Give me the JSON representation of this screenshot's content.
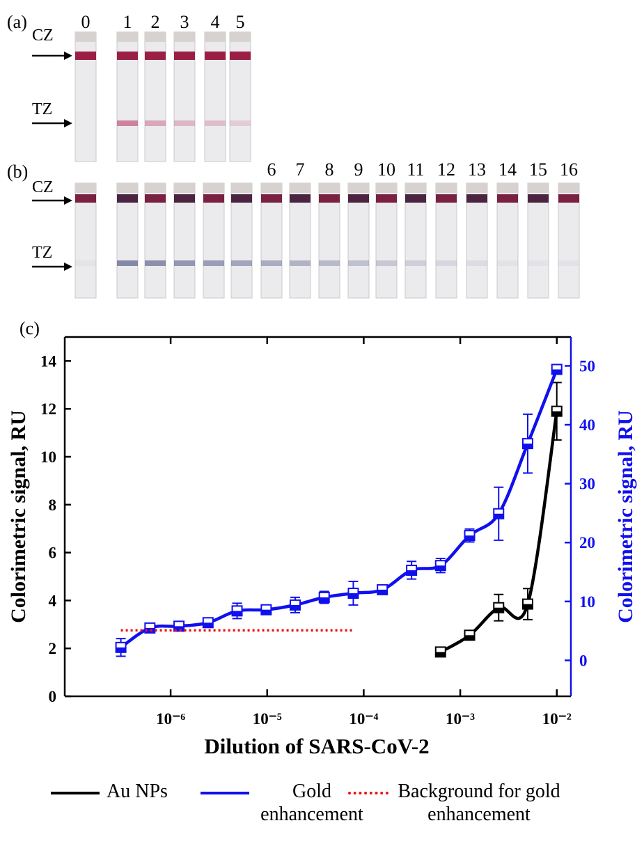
{
  "panel_a": {
    "label": "(a)",
    "lanes": [
      "0",
      "1",
      "2",
      "3",
      "4",
      "5"
    ],
    "cz": "CZ",
    "tz": "TZ"
  },
  "panel_b": {
    "label": "(b)",
    "lanes": [
      "6",
      "7",
      "8",
      "9",
      "10",
      "11",
      "12",
      "13",
      "14",
      "15",
      "16"
    ],
    "cz": "CZ",
    "tz": "TZ"
  },
  "panel_c": {
    "label": "(c)"
  },
  "chart_data": {
    "type": "line",
    "xlabel": "Dilution of SARS-CoV-2",
    "ylabel": "Colorimetric signal, RU",
    "y2label": "Colorimetric signal, RU",
    "log_x": true,
    "x": [
      3.05e-07,
      6.1e-07,
      1.22e-06,
      2.44e-06,
      4.88e-06,
      9.77e-06,
      1.95e-05,
      3.9e-05,
      7.8e-05,
      0.000156,
      0.000313,
      0.000625,
      0.00125,
      0.0025,
      0.005,
      0.01
    ],
    "xlim": [
      8e-08,
      0.014
    ],
    "xticks": [
      {
        "value": 1e-06,
        "label": "10⁻⁶"
      },
      {
        "value": 1e-05,
        "label": "10⁻⁵"
      },
      {
        "value": 0.0001,
        "label": "10⁻⁴"
      },
      {
        "value": 0.001,
        "label": "10⁻³"
      },
      {
        "value": 0.01,
        "label": "10⁻²"
      }
    ],
    "ylim": [
      0,
      15
    ],
    "yticks": [
      0,
      2,
      4,
      6,
      8,
      10,
      12,
      14
    ],
    "y2lim": [
      -6.1,
      54.9
    ],
    "y2ticks": [
      0,
      10,
      20,
      30,
      40,
      50
    ],
    "y2color": "#1010ee",
    "series": [
      {
        "name": "Au NPs",
        "color": "#000000",
        "style": "solid",
        "values": [
          null,
          null,
          null,
          null,
          null,
          null,
          null,
          null,
          null,
          null,
          null,
          1.85,
          2.55,
          3.7,
          3.85,
          11.9
        ],
        "errors": [
          null,
          null,
          null,
          null,
          null,
          null,
          null,
          null,
          null,
          null,
          null,
          0.15,
          0.1,
          0.55,
          0.65,
          1.2
        ]
      },
      {
        "name": "Gold enhancement",
        "color": "#1010ee",
        "style": "solid",
        "axis": "y2",
        "values": [
          2.2,
          5.5,
          5.8,
          6.4,
          8.4,
          8.6,
          9.4,
          10.7,
          11.4,
          12.0,
          15.3,
          16.1,
          21.2,
          24.9,
          36.8,
          49.4
        ],
        "errors": [
          1.5,
          0.5,
          0.5,
          0.7,
          1.3,
          0.6,
          1.3,
          1.0,
          2.0,
          0.6,
          1.5,
          1.2,
          1.1,
          4.5,
          5.0,
          0.5
        ]
      },
      {
        "name": "Background for gold enhancement",
        "color": "#ee1111",
        "style": "dotted",
        "axis": "y2",
        "values": [
          5.1,
          5.1,
          5.1,
          5.1,
          5.1,
          5.1,
          5.1,
          5.1,
          5.1,
          null,
          null,
          null,
          null,
          null,
          null,
          null
        ]
      }
    ]
  }
}
